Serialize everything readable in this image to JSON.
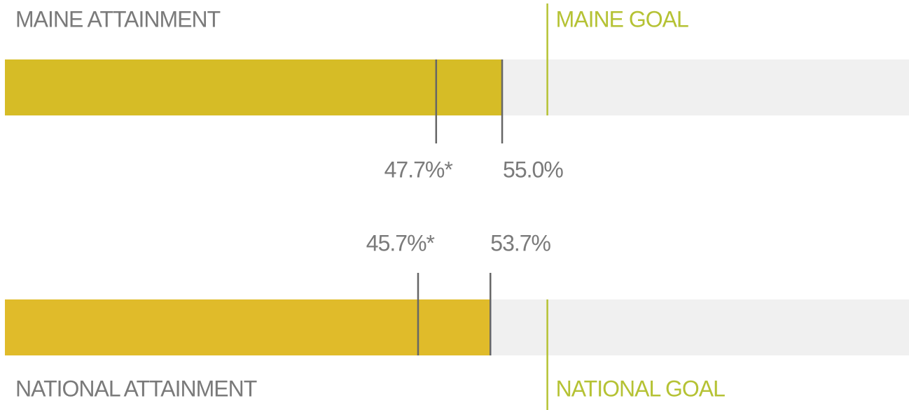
{
  "chart_data": [
    {
      "type": "bullet",
      "title": "MAINE ATTAINMENT",
      "goal_label": "MAINE GOAL",
      "values": [
        47.7,
        55.0
      ],
      "value_labels": [
        "47.7%*",
        "55.0%"
      ],
      "goal": 60,
      "xlim": [
        0,
        100
      ],
      "color": "#d6bc26",
      "goal_color": "#b5c234",
      "track_color": "#f0f0f0"
    },
    {
      "type": "bullet",
      "title": "NATIONAL ATTAINMENT",
      "goal_label": "NATIONAL GOAL",
      "values": [
        45.7,
        53.7
      ],
      "value_labels": [
        "45.7%*",
        "53.7%"
      ],
      "goal": 60,
      "xlim": [
        0,
        100
      ],
      "color": "#e0bb2a",
      "goal_color": "#b5c234",
      "track_color": "#f0f0f0"
    }
  ]
}
